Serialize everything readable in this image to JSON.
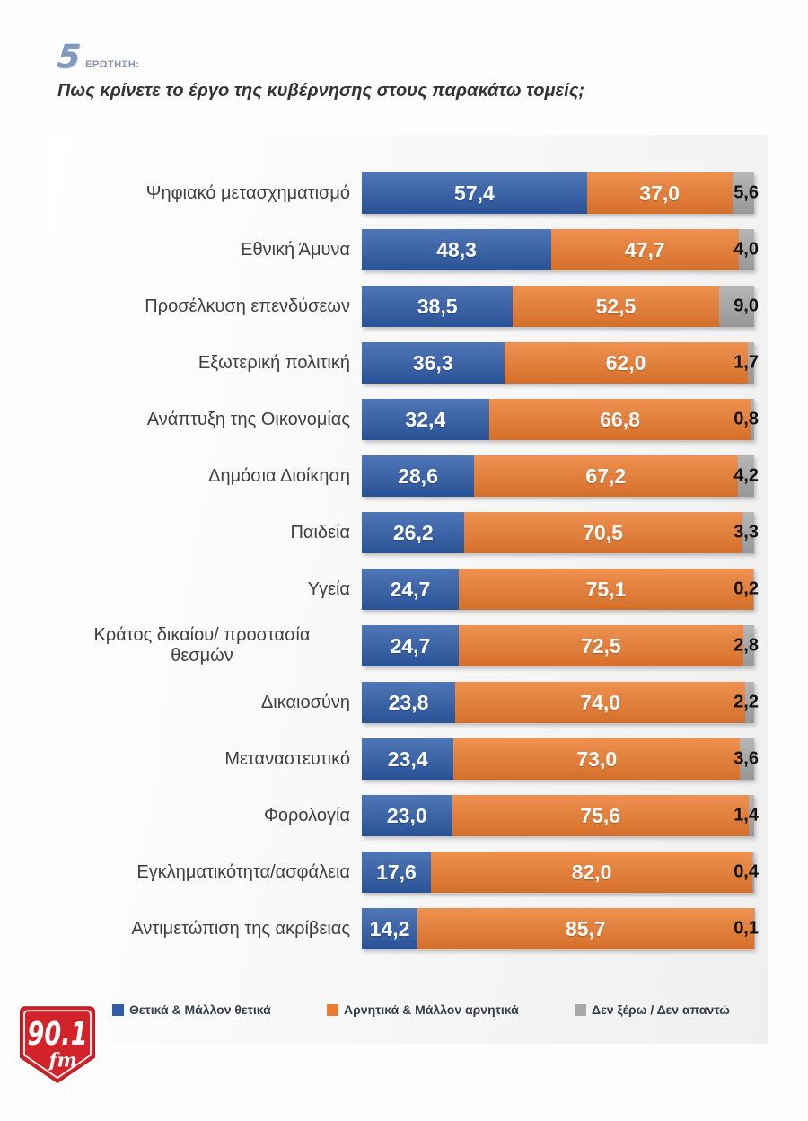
{
  "header": {
    "question_number": "5",
    "question_label": "ΕΡΩΤΗΣΗ:",
    "title": "Πως κρίνετε το έργο της κυβέρνησης στους παρακάτω τομείς;"
  },
  "chart_data": {
    "type": "bar",
    "orientation": "horizontal",
    "stacked": true,
    "xlim": [
      0,
      100
    ],
    "grid": false,
    "legend_position": "bottom",
    "value_label_format": "comma-decimal, one decimal place",
    "categories": [
      "Ψηφιακό μετασχηματισμό",
      "Εθνική Άμυνα",
      "Προσέλκυση επενδύσεων",
      "Εξωτερική πολιτική",
      "Ανάπτυξη της Οικονομίας",
      "Δημόσια Διοίκηση",
      "Παιδεία",
      "Υγεία",
      "Κράτος δικαίου/ προστασία\nθεσμών",
      "Δικαιοσύνη",
      "Μεταναστευτικό",
      "Φορολογία",
      "Εγκληματικότητα/ασφάλεια",
      "Αντιμετώπιση της ακρίβειας"
    ],
    "series": [
      {
        "name": "Θετικά & Μάλλον θετικά",
        "color": "#2E5CA8",
        "values": [
          57.4,
          48.3,
          38.5,
          36.3,
          32.4,
          28.6,
          26.2,
          24.7,
          24.7,
          23.8,
          23.4,
          23.0,
          17.6,
          14.2
        ]
      },
      {
        "name": "Αρνητικά & Μάλλον αρνητικά",
        "color": "#EC7C2F",
        "values": [
          37.0,
          47.7,
          52.5,
          62.0,
          66.8,
          67.2,
          70.5,
          75.1,
          72.5,
          74.0,
          73.0,
          75.6,
          82.0,
          85.7
        ]
      },
      {
        "name": "Δεν ξέρω / Δεν απαντώ",
        "color": "#A8A8A8",
        "values": [
          5.6,
          4.0,
          9.0,
          1.7,
          0.8,
          4.2,
          3.3,
          0.2,
          2.8,
          2.2,
          3.6,
          1.4,
          0.4,
          0.1
        ]
      }
    ]
  },
  "logo": {
    "station": "90.1",
    "suffix": "fm",
    "color": "#D2232A"
  }
}
